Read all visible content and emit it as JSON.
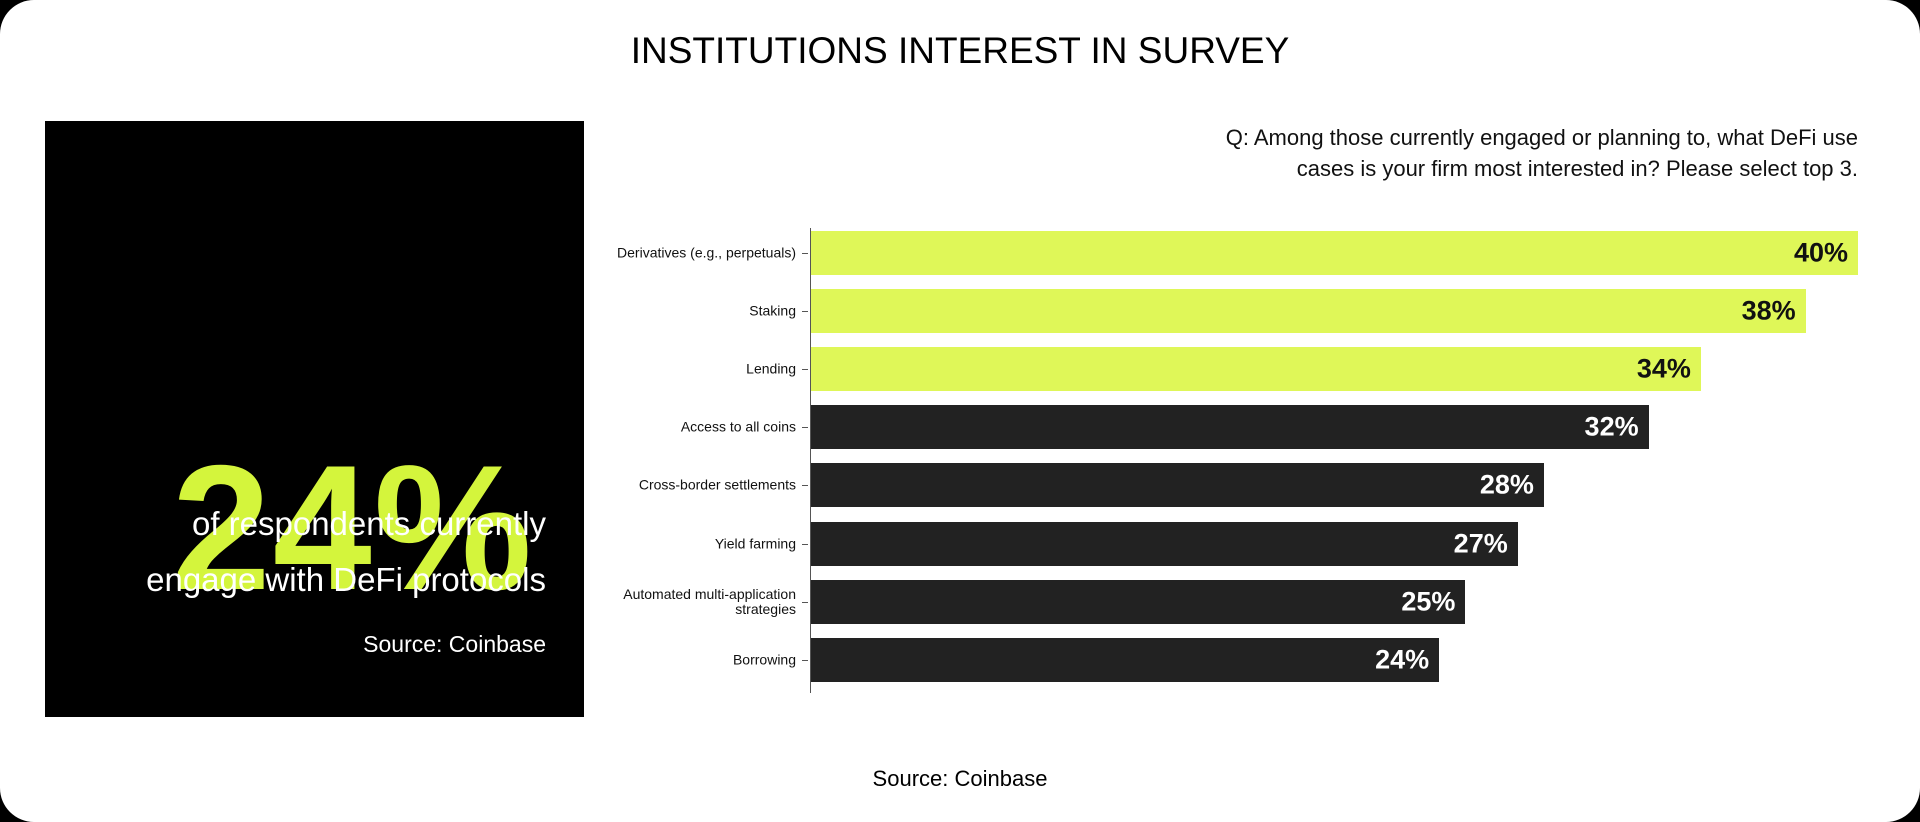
{
  "title": "INSTITUTIONS INTEREST IN SURVEY",
  "panel": {
    "stat": "24%",
    "caption_lines": [
      "of respondents currently",
      "engage with DeFi protocols"
    ],
    "source": "Source: Coinbase"
  },
  "chart_data": {
    "type": "bar",
    "orientation": "horizontal",
    "subtitle_lines": [
      "Q: Among those currently engaged or planning to, what DeFi use",
      "cases is your firm most interested in? Please select top 3."
    ],
    "categories": [
      "Derivatives (e.g., perpetuals)",
      "Staking",
      "Lending",
      "Access to all coins",
      "Cross-border settlements",
      "Yield farming",
      "Automated multi-application strategies",
      "Borrowing"
    ],
    "values": [
      40,
      38,
      34,
      32,
      28,
      27,
      25,
      24
    ],
    "value_labels": [
      "40%",
      "38%",
      "34%",
      "32%",
      "28%",
      "27%",
      "25%",
      "24%"
    ],
    "colors": [
      "#dff758",
      "#dff758",
      "#dff758",
      "#222222",
      "#222222",
      "#222222",
      "#222222",
      "#222222"
    ],
    "xlim": [
      0,
      40
    ]
  },
  "footer": {
    "source": "Source: Coinbase"
  }
}
